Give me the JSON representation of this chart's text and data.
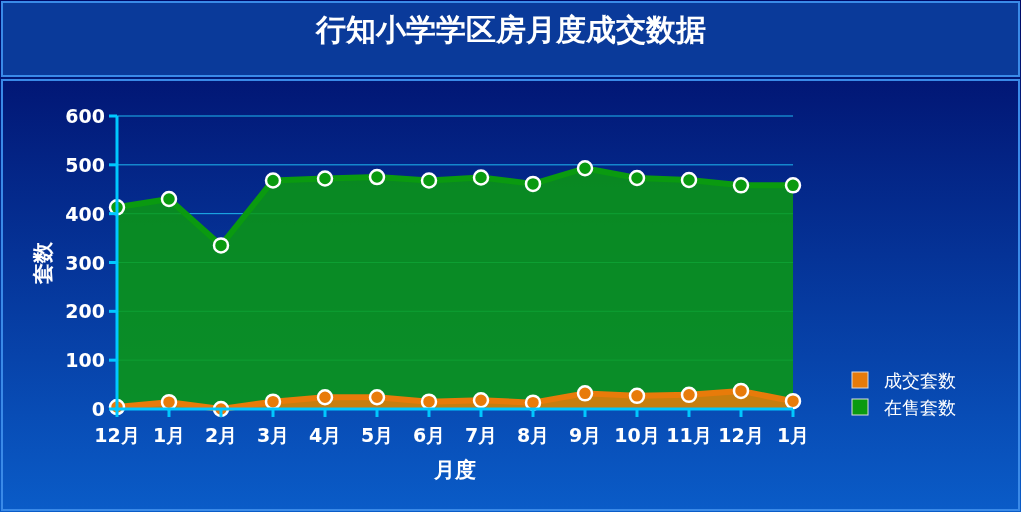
{
  "chart_data": {
    "type": "area",
    "title": "行知小学学区房月度成交数据",
    "xlabel": "月度",
    "ylabel": "套数",
    "categories": [
      "12月",
      "1月",
      "2月",
      "3月",
      "4月",
      "5月",
      "6月",
      "7月",
      "8月",
      "9月",
      "10月",
      "11月",
      "12月",
      "1月"
    ],
    "series": [
      {
        "name": "在售套数",
        "color": "#0a9a10",
        "values": [
          413,
          430,
          335,
          468,
          472,
          475,
          468,
          474,
          461,
          493,
          473,
          469,
          458,
          458
        ]
      },
      {
        "name": "成交套数",
        "color": "#e87b0a",
        "values": [
          4,
          14,
          0,
          15,
          24,
          24,
          15,
          18,
          13,
          32,
          27,
          29,
          37,
          16
        ]
      }
    ],
    "ylim": [
      0,
      600
    ],
    "yticks": [
      0,
      100,
      200,
      300,
      400,
      500,
      600
    ],
    "grid": "y",
    "legend": "right",
    "marker": "circle",
    "line_style": "solid"
  }
}
